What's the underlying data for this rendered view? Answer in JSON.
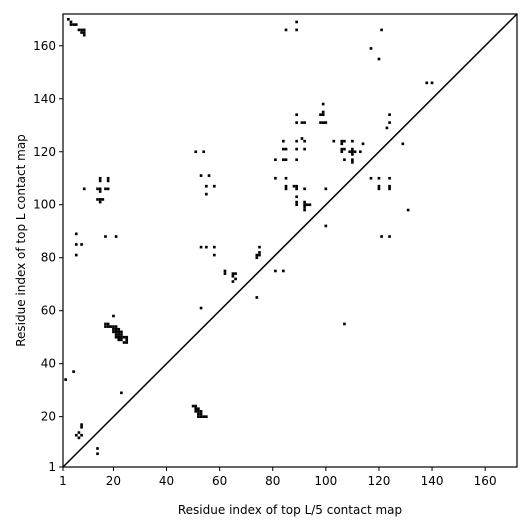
{
  "chart_data": {
    "type": "scatter",
    "title": "",
    "xlabel": "Residue index of top L/5 contact map",
    "ylabel": "Residue index of top L contact map",
    "xlim": [
      1,
      172
    ],
    "ylim": [
      1,
      172
    ],
    "xticks": [
      1,
      20,
      40,
      60,
      80,
      100,
      120,
      140,
      160
    ],
    "yticks": [
      1,
      20,
      40,
      60,
      80,
      100,
      120,
      140,
      160
    ],
    "grid": false,
    "legend": "none",
    "diagonal": true,
    "marker_color": "#000000",
    "points": [
      [
        3,
        170
      ],
      [
        4,
        169
      ],
      [
        4,
        168
      ],
      [
        5,
        168
      ],
      [
        6,
        168
      ],
      [
        7,
        166
      ],
      [
        8,
        166
      ],
      [
        8,
        165
      ],
      [
        9,
        166
      ],
      [
        9,
        165
      ],
      [
        9,
        164
      ],
      [
        2,
        34
      ],
      [
        5,
        37
      ],
      [
        6,
        89
      ],
      [
        6,
        85
      ],
      [
        6,
        81
      ],
      [
        8,
        85
      ],
      [
        6,
        13
      ],
      [
        7,
        12
      ],
      [
        7,
        14
      ],
      [
        8,
        13
      ],
      [
        8,
        16
      ],
      [
        8,
        17
      ],
      [
        9,
        106
      ],
      [
        14,
        106
      ],
      [
        15,
        106
      ],
      [
        15,
        105
      ],
      [
        14,
        102
      ],
      [
        15,
        102
      ],
      [
        15,
        101
      ],
      [
        16,
        102
      ],
      [
        15,
        109
      ],
      [
        15,
        110
      ],
      [
        18,
        109
      ],
      [
        18,
        110
      ],
      [
        17,
        106
      ],
      [
        18,
        106
      ],
      [
        17,
        88
      ],
      [
        21,
        88
      ],
      [
        14,
        8
      ],
      [
        14,
        6
      ],
      [
        17,
        55
      ],
      [
        18,
        55
      ],
      [
        17,
        54
      ],
      [
        18,
        54
      ],
      [
        19,
        54
      ],
      [
        20,
        54
      ],
      [
        21,
        54
      ],
      [
        20,
        53
      ],
      [
        21,
        53
      ],
      [
        22,
        53
      ],
      [
        20,
        52
      ],
      [
        21,
        52
      ],
      [
        22,
        52
      ],
      [
        23,
        52
      ],
      [
        21,
        51
      ],
      [
        22,
        51
      ],
      [
        23,
        51
      ],
      [
        21,
        50
      ],
      [
        22,
        50
      ],
      [
        23,
        50
      ],
      [
        22,
        49
      ],
      [
        23,
        49
      ],
      [
        24,
        50
      ],
      [
        25,
        50
      ],
      [
        25,
        49
      ],
      [
        24,
        48
      ],
      [
        25,
        48
      ],
      [
        20,
        58
      ],
      [
        23,
        29
      ],
      [
        50,
        24
      ],
      [
        51,
        24
      ],
      [
        51,
        23
      ],
      [
        52,
        23
      ],
      [
        51,
        22
      ],
      [
        52,
        22
      ],
      [
        53,
        22
      ],
      [
        52,
        21
      ],
      [
        53,
        21
      ],
      [
        52,
        20
      ],
      [
        53,
        20
      ],
      [
        54,
        20
      ],
      [
        55,
        20
      ],
      [
        53,
        61
      ],
      [
        51,
        120
      ],
      [
        54,
        120
      ],
      [
        53,
        111
      ],
      [
        56,
        111
      ],
      [
        55,
        107
      ],
      [
        58,
        107
      ],
      [
        55,
        104
      ],
      [
        53,
        84
      ],
      [
        55,
        84
      ],
      [
        58,
        84
      ],
      [
        58,
        81
      ],
      [
        62,
        75
      ],
      [
        62,
        74
      ],
      [
        65,
        74
      ],
      [
        66,
        74
      ],
      [
        65,
        73
      ],
      [
        65,
        71
      ],
      [
        66,
        72
      ],
      [
        74,
        80
      ],
      [
        74,
        81
      ],
      [
        75,
        81
      ],
      [
        75,
        82
      ],
      [
        75,
        84
      ],
      [
        74,
        65
      ],
      [
        81,
        75
      ],
      [
        84,
        75
      ],
      [
        81,
        117
      ],
      [
        81,
        110
      ],
      [
        84,
        124
      ],
      [
        84,
        121
      ],
      [
        85,
        121
      ],
      [
        85,
        117
      ],
      [
        84,
        117
      ],
      [
        85,
        110
      ],
      [
        85,
        107
      ],
      [
        85,
        106
      ],
      [
        89,
        134
      ],
      [
        89,
        131
      ],
      [
        89,
        124
      ],
      [
        89,
        121
      ],
      [
        89,
        117
      ],
      [
        88,
        107
      ],
      [
        89,
        107
      ],
      [
        89,
        106
      ],
      [
        89,
        103
      ],
      [
        89,
        101
      ],
      [
        89,
        100
      ],
      [
        91,
        131
      ],
      [
        92,
        131
      ],
      [
        91,
        125
      ],
      [
        92,
        124
      ],
      [
        92,
        121
      ],
      [
        92,
        106
      ],
      [
        92,
        101
      ],
      [
        92,
        100
      ],
      [
        92,
        99
      ],
      [
        92,
        98
      ],
      [
        93,
        100
      ],
      [
        94,
        100
      ],
      [
        99,
        138
      ],
      [
        99,
        135
      ],
      [
        99,
        134
      ],
      [
        98,
        134
      ],
      [
        98,
        131
      ],
      [
        99,
        131
      ],
      [
        100,
        131
      ],
      [
        100,
        106
      ],
      [
        100,
        92
      ],
      [
        103,
        124
      ],
      [
        106,
        124
      ],
      [
        106,
        123
      ],
      [
        107,
        124
      ],
      [
        106,
        121
      ],
      [
        107,
        121
      ],
      [
        106,
        120
      ],
      [
        107,
        117
      ],
      [
        107,
        55
      ],
      [
        110,
        124
      ],
      [
        110,
        121
      ],
      [
        109,
        120
      ],
      [
        110,
        120
      ],
      [
        111,
        120
      ],
      [
        110,
        119
      ],
      [
        110,
        117
      ],
      [
        110,
        116
      ],
      [
        113,
        120
      ],
      [
        114,
        123
      ],
      [
        117,
        110
      ],
      [
        120,
        110
      ],
      [
        120,
        107
      ],
      [
        120,
        106
      ],
      [
        121,
        88
      ],
      [
        124,
        88
      ],
      [
        124,
        134
      ],
      [
        124,
        131
      ],
      [
        124,
        110
      ],
      [
        124,
        107
      ],
      [
        124,
        106
      ],
      [
        123,
        129
      ],
      [
        117,
        159
      ],
      [
        121,
        166
      ],
      [
        120,
        155
      ],
      [
        129,
        123
      ],
      [
        131,
        98
      ],
      [
        138,
        146
      ],
      [
        140,
        146
      ],
      [
        85,
        166
      ],
      [
        89,
        166
      ],
      [
        89,
        169
      ]
    ]
  }
}
